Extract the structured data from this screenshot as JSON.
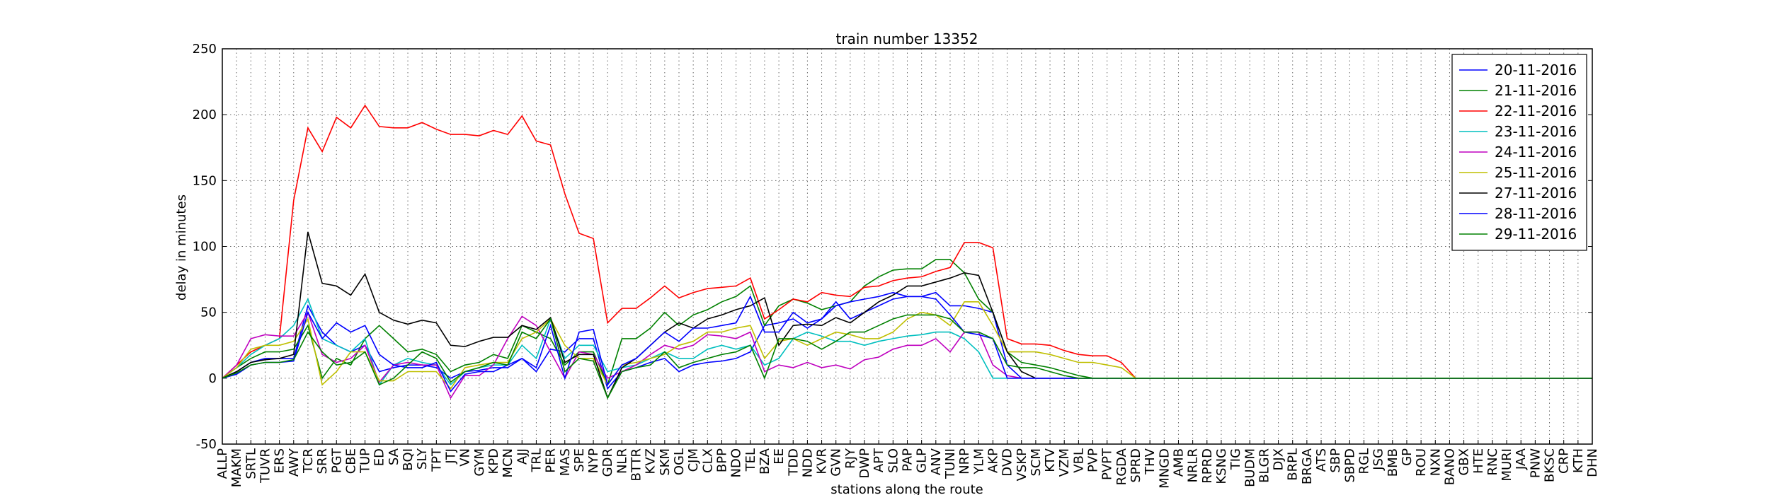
{
  "chart_data": {
    "type": "line",
    "title": "train number 13352",
    "xlabel": "stations along the route",
    "ylabel": "delay in minutes",
    "categories": [
      "ALLP",
      "MAKM",
      "SRTL",
      "TUVR",
      "ERS",
      "AWY",
      "TCR",
      "SRR",
      "PGT",
      "CBE",
      "TUP",
      "ED",
      "SA",
      "BQI",
      "SLY",
      "TPT",
      "JTJ",
      "VN",
      "GYM",
      "KPD",
      "MCN",
      "AJJ",
      "TRL",
      "PER",
      "MAS",
      "SPE",
      "NYP",
      "GDR",
      "NLR",
      "BTTR",
      "KVZ",
      "SKM",
      "OGL",
      "CJM",
      "CLX",
      "BPP",
      "NDO",
      "TEL",
      "BZA",
      "EE",
      "TDD",
      "NDD",
      "KVR",
      "GVN",
      "RJY",
      "DWP",
      "APT",
      "SLO",
      "PAP",
      "GLP",
      "ANV",
      "TUNI",
      "NRP",
      "YLM",
      "AKP",
      "DVD",
      "VSKP",
      "SCM",
      "KTV",
      "VZM",
      "VBL",
      "PVP",
      "PVPT",
      "RGDA",
      "SPRD",
      "THV",
      "MNGD",
      "AMB",
      "NRLR",
      "RPRD",
      "KSNG",
      "TIG",
      "BUDM",
      "BLGR",
      "DJX",
      "BRPL",
      "BRGA",
      "ATS",
      "SBP",
      "SBPD",
      "RGL",
      "JSG",
      "BMB",
      "GP",
      "ROU",
      "NXN",
      "BANO",
      "GBX",
      "HTE",
      "RNC",
      "MURI",
      "JAA",
      "PNW",
      "BKSC",
      "CRP",
      "KTH",
      "DHN"
    ],
    "series": [
      {
        "name": "20-11-2016",
        "color": "#0000ff",
        "values": [
          0,
          5,
          12,
          15,
          15,
          15,
          55,
          35,
          25,
          20,
          25,
          5,
          8,
          10,
          10,
          8,
          0,
          5,
          6,
          8,
          8,
          15,
          5,
          22,
          20,
          30,
          30,
          -8,
          5,
          8,
          12,
          15,
          5,
          10,
          12,
          13,
          15,
          20,
          40,
          42,
          45,
          38,
          45,
          58,
          45,
          50,
          55,
          60,
          62,
          62,
          65,
          55,
          55,
          53,
          50,
          10,
          0,
          0,
          0,
          0,
          0,
          0,
          0,
          0,
          0,
          0,
          0,
          0,
          0,
          0,
          0,
          0,
          0,
          0,
          0,
          0,
          0,
          0,
          0,
          0,
          0,
          0,
          0,
          0,
          0,
          0,
          0,
          0,
          0,
          0,
          0,
          0,
          0,
          0,
          0,
          0,
          0
        ]
      },
      {
        "name": "21-11-2016",
        "color": "#008000",
        "values": [
          0,
          8,
          15,
          20,
          20,
          22,
          40,
          0,
          15,
          10,
          30,
          40,
          30,
          20,
          22,
          18,
          5,
          10,
          12,
          18,
          15,
          40,
          35,
          30,
          10,
          20,
          20,
          -5,
          30,
          30,
          38,
          50,
          40,
          48,
          52,
          58,
          62,
          70,
          40,
          55,
          60,
          57,
          52,
          55,
          58,
          70,
          77,
          82,
          83,
          83,
          90,
          90,
          80,
          60,
          50,
          20,
          12,
          10,
          8,
          5,
          2,
          0,
          0,
          0,
          0,
          0,
          0,
          0,
          0,
          0,
          0,
          0,
          0,
          0,
          0,
          0,
          0,
          0,
          0,
          0,
          0,
          0,
          0,
          0,
          0,
          0,
          0,
          0,
          0,
          0,
          0,
          0,
          0,
          0,
          0,
          0,
          0
        ]
      },
      {
        "name": "22-11-2016",
        "color": "#ff0000",
        "values": [
          0,
          10,
          20,
          25,
          30,
          135,
          190,
          172,
          198,
          190,
          207,
          191,
          190,
          190,
          194,
          189,
          185,
          185,
          184,
          188,
          185,
          199,
          180,
          177,
          140,
          110,
          106,
          42,
          53,
          53,
          61,
          70,
          61,
          65,
          68,
          69,
          70,
          76,
          45,
          52,
          60,
          58,
          65,
          63,
          62,
          69,
          70,
          74,
          76,
          77,
          81,
          84,
          103,
          103,
          99,
          30,
          26,
          26,
          25,
          21,
          18,
          17,
          17,
          12,
          0,
          0,
          0,
          0,
          0,
          0,
          0,
          0,
          0,
          0,
          0,
          0,
          0,
          0,
          0,
          0,
          0,
          0,
          0,
          0,
          0,
          0,
          0,
          0,
          0,
          0,
          0,
          0,
          0,
          0,
          0,
          0,
          0
        ]
      },
      {
        "name": "23-11-2016",
        "color": "#00bfbf",
        "values": [
          0,
          8,
          18,
          25,
          30,
          40,
          60,
          30,
          25,
          20,
          30,
          -5,
          10,
          15,
          12,
          10,
          -5,
          5,
          8,
          10,
          10,
          25,
          15,
          45,
          15,
          25,
          25,
          5,
          8,
          10,
          15,
          20,
          15,
          15,
          22,
          25,
          22,
          25,
          10,
          15,
          30,
          35,
          32,
          28,
          28,
          25,
          28,
          30,
          32,
          33,
          35,
          35,
          30,
          20,
          0,
          0,
          0,
          0,
          0,
          0,
          0,
          0,
          0,
          0,
          0,
          0,
          0,
          0,
          0,
          0,
          0,
          0,
          0,
          0,
          0,
          0,
          0,
          0,
          0,
          0,
          0,
          0,
          0,
          0,
          0,
          0,
          0,
          0,
          0,
          0,
          0,
          0,
          0,
          0,
          0,
          0,
          0
        ]
      },
      {
        "name": "24-11-2016",
        "color": "#bf00bf",
        "values": [
          0,
          10,
          30,
          33,
          32,
          32,
          50,
          18,
          12,
          15,
          25,
          -3,
          10,
          12,
          10,
          10,
          -15,
          2,
          2,
          10,
          30,
          47,
          40,
          20,
          0,
          20,
          18,
          0,
          5,
          10,
          18,
          25,
          22,
          25,
          33,
          32,
          30,
          35,
          5,
          10,
          8,
          12,
          8,
          10,
          7,
          14,
          16,
          22,
          25,
          25,
          30,
          20,
          35,
          35,
          10,
          2,
          0,
          0,
          0,
          0,
          0,
          0,
          0,
          0,
          0,
          0,
          0,
          0,
          0,
          0,
          0,
          0,
          0,
          0,
          0,
          0,
          0,
          0,
          0,
          0,
          0,
          0,
          0,
          0,
          0,
          0,
          0,
          0,
          0,
          0,
          0,
          0,
          0,
          0,
          0,
          0,
          0
        ]
      },
      {
        "name": "25-11-2016",
        "color": "#bfbf00",
        "values": [
          0,
          8,
          22,
          25,
          25,
          28,
          45,
          -5,
          5,
          20,
          20,
          -2,
          -2,
          5,
          5,
          5,
          -8,
          8,
          10,
          12,
          12,
          30,
          35,
          45,
          25,
          15,
          15,
          -5,
          10,
          12,
          15,
          18,
          25,
          28,
          35,
          35,
          38,
          40,
          15,
          28,
          30,
          25,
          30,
          35,
          33,
          30,
          30,
          35,
          45,
          50,
          48,
          40,
          58,
          58,
          40,
          20,
          20,
          20,
          18,
          15,
          12,
          12,
          10,
          8,
          0,
          0,
          0,
          0,
          0,
          0,
          0,
          0,
          0,
          0,
          0,
          0,
          0,
          0,
          0,
          0,
          0,
          0,
          0,
          0,
          0,
          0,
          0,
          0,
          0,
          0,
          0,
          0,
          0,
          0,
          0,
          0,
          0
        ]
      },
      {
        "name": "27-11-2016",
        "color": "#000000",
        "values": [
          0,
          5,
          12,
          14,
          15,
          18,
          111,
          72,
          70,
          63,
          79,
          50,
          44,
          41,
          44,
          42,
          25,
          24,
          28,
          31,
          31,
          40,
          37,
          46,
          12,
          18,
          18,
          -15,
          8,
          15,
          25,
          35,
          42,
          38,
          45,
          48,
          52,
          55,
          61,
          25,
          40,
          41,
          40,
          46,
          42,
          50,
          58,
          63,
          70,
          70,
          73,
          76,
          80,
          78,
          50,
          20,
          5,
          0,
          0,
          0,
          0,
          0,
          0,
          0,
          0,
          0,
          0,
          0,
          0,
          0,
          0,
          0,
          0,
          0,
          0,
          0,
          0,
          0,
          0,
          0,
          0,
          0,
          0,
          0,
          0,
          0,
          0,
          0,
          0,
          0,
          0,
          0,
          0,
          0,
          0,
          0,
          0
        ]
      },
      {
        "name": "28-11-2016",
        "color": "#0000ff",
        "values": [
          0,
          3,
          10,
          12,
          12,
          13,
          50,
          30,
          42,
          35,
          40,
          18,
          10,
          8,
          8,
          12,
          -10,
          3,
          5,
          5,
          10,
          15,
          8,
          40,
          0,
          35,
          37,
          -5,
          10,
          15,
          25,
          35,
          28,
          38,
          38,
          40,
          42,
          62,
          35,
          35,
          50,
          42,
          45,
          55,
          58,
          60,
          62,
          65,
          62,
          62,
          60,
          48,
          35,
          33,
          30,
          0,
          0,
          0,
          0,
          0,
          0,
          0,
          0,
          0,
          0,
          0,
          0,
          0,
          0,
          0,
          0,
          0,
          0,
          0,
          0,
          0,
          0,
          0,
          0,
          0,
          0,
          0,
          0,
          0,
          0,
          0,
          0,
          0,
          0,
          0,
          0,
          0,
          0,
          0,
          0,
          0,
          0
        ]
      },
      {
        "name": "29-11-2016",
        "color": "#008000",
        "values": [
          0,
          4,
          10,
          12,
          12,
          14,
          35,
          20,
          10,
          12,
          20,
          -5,
          0,
          10,
          20,
          15,
          -3,
          5,
          8,
          12,
          10,
          35,
          30,
          45,
          5,
          15,
          13,
          -15,
          5,
          8,
          10,
          20,
          8,
          12,
          15,
          18,
          20,
          25,
          0,
          30,
          30,
          28,
          22,
          28,
          35,
          35,
          40,
          45,
          48,
          48,
          48,
          45,
          35,
          35,
          30,
          10,
          8,
          8,
          5,
          2,
          0,
          0,
          0,
          0,
          0,
          0,
          0,
          0,
          0,
          0,
          0,
          0,
          0,
          0,
          0,
          0,
          0,
          0,
          0,
          0,
          0,
          0,
          0,
          0,
          0,
          0,
          0,
          0,
          0,
          0,
          0,
          0,
          0,
          0,
          0,
          0,
          0
        ]
      }
    ],
    "ylim": [
      -50,
      250
    ],
    "yticks": [
      -50,
      0,
      50,
      100,
      150,
      200,
      250
    ],
    "grid": true,
    "legend": "upper right"
  }
}
